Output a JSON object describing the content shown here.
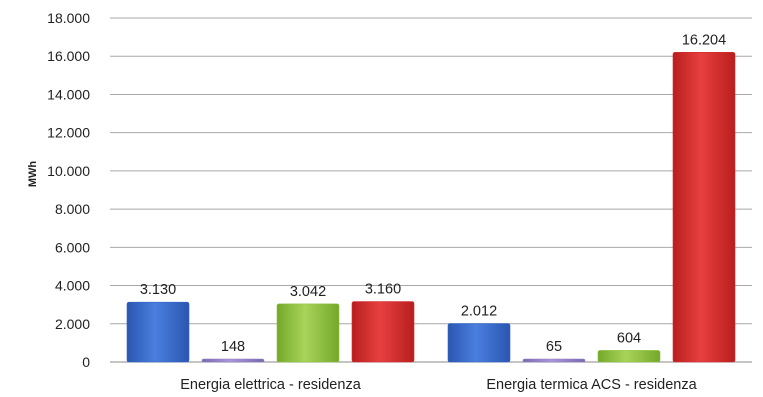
{
  "chart_data": {
    "type": "bar",
    "title": "",
    "xlabel": "",
    "ylabel": "MWh",
    "ylim": [
      0,
      18000
    ],
    "yticks": [
      0,
      2000,
      4000,
      6000,
      8000,
      10000,
      12000,
      14000,
      16000,
      18000
    ],
    "ytick_labels": [
      "0",
      "2.000",
      "4.000",
      "6.000",
      "8.000",
      "10.000",
      "12.000",
      "14.000",
      "16.000",
      "18.000"
    ],
    "categories": [
      "Energia elettrica  - residenza",
      "Energia termica ACS - residenza"
    ],
    "grid": true,
    "legend": "none",
    "series": [
      {
        "color": "#3366c8",
        "values": [
          3130,
          2012
        ],
        "labels": [
          "3.130",
          "2.012"
        ]
      },
      {
        "color": "#8e7cc3",
        "values": [
          148,
          65
        ],
        "labels": [
          "148",
          "65"
        ]
      },
      {
        "color": "#8bc03a",
        "values": [
          3042,
          604
        ],
        "labels": [
          "3.042",
          "604"
        ]
      },
      {
        "color": "#d42a2a",
        "values": [
          3160,
          16204
        ],
        "labels": [
          "3.160",
          "16.204"
        ]
      }
    ]
  }
}
